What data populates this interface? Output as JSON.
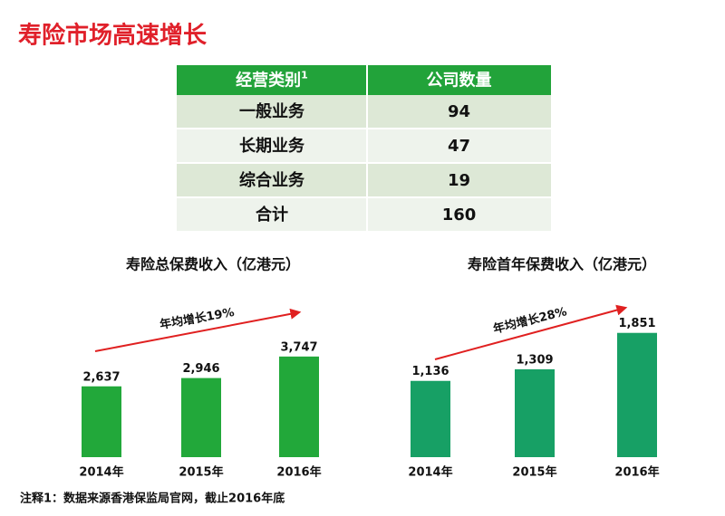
{
  "title": "寿险市场高速增长",
  "table": {
    "header": [
      {
        "text": "经营类别",
        "sup": "1"
      },
      {
        "text": "公司数量"
      }
    ],
    "rows": [
      [
        "一般业务",
        94
      ],
      [
        "长期业务",
        47
      ],
      [
        "综合业务",
        19
      ],
      [
        "合计",
        160
      ]
    ]
  },
  "chart_data": [
    {
      "type": "bar",
      "title": "寿险总保费收入（亿港元）",
      "categories": [
        "2014年",
        "2015年",
        "2016年"
      ],
      "values": [
        2637,
        2946,
        3747
      ],
      "value_labels": [
        "2,637",
        "2,946",
        "3,747"
      ],
      "color": "#22a83a",
      "ylim": [
        0,
        6000
      ],
      "annotation": "年均增长19%"
    },
    {
      "type": "bar",
      "title": "寿险首年保费收入（亿港元）",
      "categories": [
        "2014年",
        "2015年",
        "2016年"
      ],
      "values": [
        1136,
        1309,
        1851
      ],
      "value_labels": [
        "1,136",
        "1,309",
        "1,851"
      ],
      "color": "#17a065",
      "ylim": [
        0,
        2400
      ],
      "annotation": "年均增长28%"
    }
  ],
  "footnote": "注释1：数据来源香港保监局官网，截止2016年底"
}
